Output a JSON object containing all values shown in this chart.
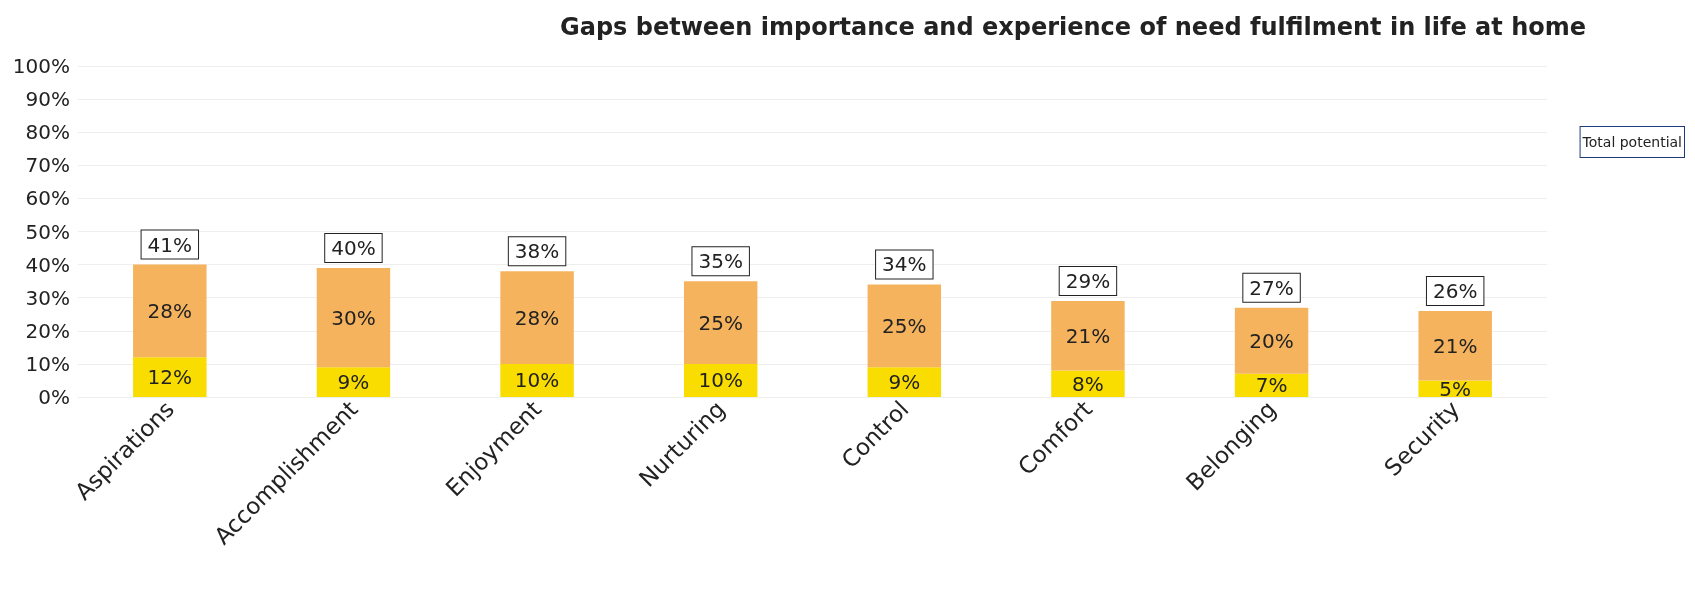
{
  "chart_data": {
    "type": "bar",
    "title": "Gaps between importance and experience of need fulfilment in life at home",
    "categories": [
      "Aspirations",
      "Accomplishment",
      "Enjoyment",
      "Nurturing",
      "Control",
      "Comfort",
      "Belonging",
      "Security"
    ],
    "stacked": true,
    "series": [
      {
        "color": "#f9dc00",
        "values": [
          12,
          9,
          10,
          10,
          9,
          8,
          7,
          5
        ],
        "value_labels": [
          "12%",
          "9%",
          "10%",
          "10%",
          "9%",
          "8%",
          "7%",
          "5%"
        ]
      },
      {
        "color": "#f6b35e",
        "values": [
          28,
          30,
          28,
          25,
          25,
          21,
          20,
          21
        ],
        "value_labels": [
          "28%",
          "30%",
          "28%",
          "25%",
          "25%",
          "21%",
          "20%",
          "21%"
        ]
      }
    ],
    "totals": [
      "41%",
      "40%",
      "38%",
      "35%",
      "34%",
      "29%",
      "27%",
      "26%"
    ],
    "annotations": [
      "Total potential"
    ],
    "ylim": [
      0,
      100
    ],
    "yticks": [
      {
        "value": 0,
        "label": "0%"
      },
      {
        "value": 10,
        "label": "10%"
      },
      {
        "value": 20,
        "label": "20%"
      },
      {
        "value": 30,
        "label": "30%"
      },
      {
        "value": 40,
        "label": "40%"
      },
      {
        "value": 50,
        "label": "50%"
      },
      {
        "value": 60,
        "label": "60%"
      },
      {
        "value": 70,
        "label": "70%"
      },
      {
        "value": 80,
        "label": "80%"
      },
      {
        "value": 90,
        "label": "90%"
      },
      {
        "value": 100,
        "label": "100%"
      }
    ],
    "grid": "y"
  }
}
